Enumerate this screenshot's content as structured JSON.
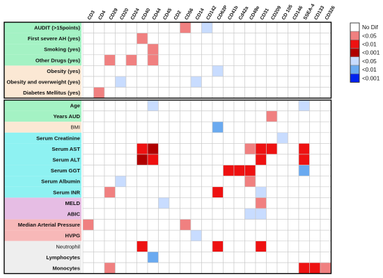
{
  "chart_data": {
    "type": "heatmap",
    "columns": [
      "CD3",
      "CD4",
      "CD29",
      "CD20",
      "CD24",
      "CD40",
      "CD44",
      "CD45",
      "CD2",
      "CD56",
      "CD14",
      "CD142",
      "CD62P",
      "CD41b",
      "Cd42a",
      "CD49e",
      "CD31",
      "CD209",
      "CD 105",
      "CD146",
      "SSEA-4",
      "CD133",
      "CD326"
    ],
    "sections": [
      {
        "rows": [
          {
            "label": "AUDIT (>15points)",
            "bold": true,
            "group": "green"
          },
          {
            "label": "First severe AH (yes)",
            "bold": true,
            "group": "green"
          },
          {
            "label": "Smoking (yes)",
            "bold": true,
            "group": "green"
          },
          {
            "label": "Other Drugs (yes)",
            "bold": true,
            "group": "green"
          },
          {
            "label": "Obesity (yes)",
            "bold": true,
            "group": "peach"
          },
          {
            "label": "Obesity and overweight (yes)",
            "bold": true,
            "group": "peach"
          },
          {
            "label": "Diabetes Mellitus (yes)",
            "bold": true,
            "group": "peach"
          }
        ]
      },
      {
        "rows": [
          {
            "label": "Age",
            "bold": true,
            "group": "green"
          },
          {
            "label": "Years AUD",
            "bold": true,
            "group": "green"
          },
          {
            "label": "BMI",
            "bold": false,
            "group": "peach"
          },
          {
            "label": "Serum Creatinine",
            "bold": true,
            "group": "cyan"
          },
          {
            "label": "Serum AST",
            "bold": true,
            "group": "cyan"
          },
          {
            "label": "Serum ALT",
            "bold": true,
            "group": "cyan"
          },
          {
            "label": "Serum GGT",
            "bold": true,
            "group": "cyan"
          },
          {
            "label": "Serum Albumin",
            "bold": true,
            "group": "cyan"
          },
          {
            "label": "Serum INR",
            "bold": true,
            "group": "cyan"
          },
          {
            "label": "MELD",
            "bold": true,
            "group": "purple"
          },
          {
            "label": "ABIC",
            "bold": true,
            "group": "purple"
          },
          {
            "label": "Median Arterial Pressure",
            "bold": true,
            "group": "pink"
          },
          {
            "label": "HVPG",
            "bold": true,
            "group": "pink"
          },
          {
            "label": "Neutrophil",
            "bold": false,
            "group": "gray"
          },
          {
            "label": "Lymphocytes",
            "bold": true,
            "group": "gray"
          },
          {
            "label": "Monocytes",
            "bold": true,
            "group": "gray"
          }
        ]
      }
    ],
    "cells": [
      {
        "row": "AUDIT (>15points)",
        "col": "CD56",
        "level": 1
      },
      {
        "row": "AUDIT (>15points)",
        "col": "CD142",
        "level": -1
      },
      {
        "row": "First severe AH (yes)",
        "col": "CD40",
        "level": 1
      },
      {
        "row": "Smoking (yes)",
        "col": "CD44",
        "level": 1
      },
      {
        "row": "Other Drugs (yes)",
        "col": "CD29",
        "level": 1
      },
      {
        "row": "Other Drugs (yes)",
        "col": "CD24",
        "level": 1
      },
      {
        "row": "Other Drugs (yes)",
        "col": "CD44",
        "level": 1
      },
      {
        "row": "Obesity (yes)",
        "col": "CD62P",
        "level": -1
      },
      {
        "row": "Obesity and overweight (yes)",
        "col": "CD20",
        "level": -1
      },
      {
        "row": "Obesity and overweight (yes)",
        "col": "CD14",
        "level": -1
      },
      {
        "row": "Diabetes Mellitus (yes)",
        "col": "CD4",
        "level": 1
      },
      {
        "row": "Age",
        "col": "CD44",
        "level": -1
      },
      {
        "row": "Age",
        "col": "SSEA-4",
        "level": -1
      },
      {
        "row": "Years AUD",
        "col": "CD209",
        "level": 1
      },
      {
        "row": "BMI",
        "col": "CD62P",
        "level": -2
      },
      {
        "row": "Serum Creatinine",
        "col": "CD 105",
        "level": -1
      },
      {
        "row": "Serum AST",
        "col": "CD40",
        "level": 2
      },
      {
        "row": "Serum AST",
        "col": "CD44",
        "level": 3
      },
      {
        "row": "Serum AST",
        "col": "CD49e",
        "level": 1
      },
      {
        "row": "Serum AST",
        "col": "CD31",
        "level": 2
      },
      {
        "row": "Serum AST",
        "col": "CD209",
        "level": 2
      },
      {
        "row": "Serum AST",
        "col": "SSEA-4",
        "level": 2
      },
      {
        "row": "Serum ALT",
        "col": "CD40",
        "level": 3
      },
      {
        "row": "Serum ALT",
        "col": "CD44",
        "level": 2
      },
      {
        "row": "Serum ALT",
        "col": "CD31",
        "level": 2
      },
      {
        "row": "Serum ALT",
        "col": "SSEA-4",
        "level": 2
      },
      {
        "row": "Serum GGT",
        "col": "CD41b",
        "level": 2
      },
      {
        "row": "Serum GGT",
        "col": "Cd42a",
        "level": 2
      },
      {
        "row": "Serum GGT",
        "col": "CD49e",
        "level": 2
      },
      {
        "row": "Serum GGT",
        "col": "SSEA-4",
        "level": -2
      },
      {
        "row": "Serum Albumin",
        "col": "CD20",
        "level": -1
      },
      {
        "row": "Serum Albumin",
        "col": "CD49e",
        "level": 1
      },
      {
        "row": "Serum INR",
        "col": "CD29",
        "level": 1
      },
      {
        "row": "Serum INR",
        "col": "CD62P",
        "level": 2
      },
      {
        "row": "Serum INR",
        "col": "CD31",
        "level": -1
      },
      {
        "row": "MELD",
        "col": "CD45",
        "level": -1
      },
      {
        "row": "MELD",
        "col": "CD31",
        "level": 1
      },
      {
        "row": "ABIC",
        "col": "CD49e",
        "level": -1
      },
      {
        "row": "ABIC",
        "col": "CD31",
        "level": -1
      },
      {
        "row": "Median Arterial Pressure",
        "col": "CD3",
        "level": 1
      },
      {
        "row": "Median Arterial Pressure",
        "col": "CD56",
        "level": 1
      },
      {
        "row": "HVPG",
        "col": "CD14",
        "level": -1
      },
      {
        "row": "Neutrophil",
        "col": "CD40",
        "level": 2
      },
      {
        "row": "Neutrophil",
        "col": "CD62P",
        "level": 2
      },
      {
        "row": "Neutrophil",
        "col": "CD31",
        "level": 2
      },
      {
        "row": "Lymphocytes",
        "col": "CD44",
        "level": -2
      },
      {
        "row": "Monocytes",
        "col": "CD29",
        "level": 1
      },
      {
        "row": "Monocytes",
        "col": "SSEA-4",
        "level": 2
      },
      {
        "row": "Monocytes",
        "col": "CD133",
        "level": 2
      },
      {
        "row": "Monocytes",
        "col": "CD326",
        "level": 1
      }
    ],
    "legend": {
      "placement": "right",
      "items": [
        {
          "label": "No Dif",
          "level": 0
        },
        {
          "label": "<0.05",
          "level": 1
        },
        {
          "label": "<0.01",
          "level": 2
        },
        {
          "label": "<0.001",
          "level": 3
        },
        {
          "label": "<0.05",
          "level": -1
        },
        {
          "label": "<0.01",
          "level": -2
        },
        {
          "label": "<0.001",
          "level": -3
        }
      ]
    },
    "level_colors": {
      "0": "#ffffff",
      "1": "#f08080",
      "2": "#ee1111",
      "3": "#b00000",
      "-1": "#c8dcff",
      "-2": "#6aaaf0",
      "-3": "#0022ee"
    },
    "group_colors": {
      "green": "#a4f2c4",
      "peach": "#fbe8d4",
      "cyan": "#8ef2f2",
      "purple": "#e6bde4",
      "pink": "#f7b8b8",
      "gray": "#eeeeee"
    },
    "grid": true
  }
}
